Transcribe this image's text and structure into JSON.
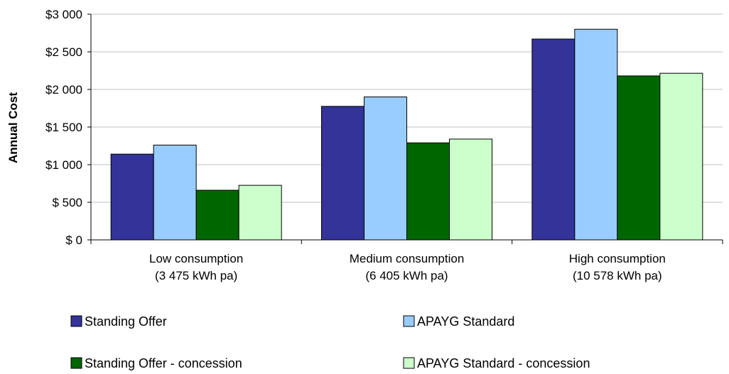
{
  "chart_data": {
    "type": "bar",
    "title": "",
    "xlabel": "",
    "ylabel": "Annual Cost",
    "ylim": [
      0,
      3000
    ],
    "ytick_values": [
      0,
      500,
      1000,
      1500,
      2000,
      2500,
      3000
    ],
    "ytick_labels": [
      "$ 0",
      "$ 500",
      "$1 000",
      "$1 500",
      "$2 000",
      "$2 500",
      "$3 000"
    ],
    "grid": true,
    "legend_position": "bottom",
    "categories": [
      [
        "Low consumption",
        "(3 475 kWh pa)"
      ],
      [
        "Medium consumption",
        "(6 405 kWh pa)"
      ],
      [
        "High consumption",
        "(10 578 kWh pa)"
      ]
    ],
    "series": [
      {
        "name": "Standing Offer",
        "color": "#333399",
        "values": [
          1140,
          1775,
          2670
        ]
      },
      {
        "name": "APAYG Standard",
        "color": "#99CCFF",
        "values": [
          1260,
          1900,
          2800
        ]
      },
      {
        "name": "Standing Offer - concession",
        "color": "#006600",
        "values": [
          660,
          1290,
          2180
        ]
      },
      {
        "name": "APAYG Standard - concession",
        "color": "#CCFFCC",
        "values": [
          725,
          1340,
          2215
        ]
      }
    ]
  }
}
